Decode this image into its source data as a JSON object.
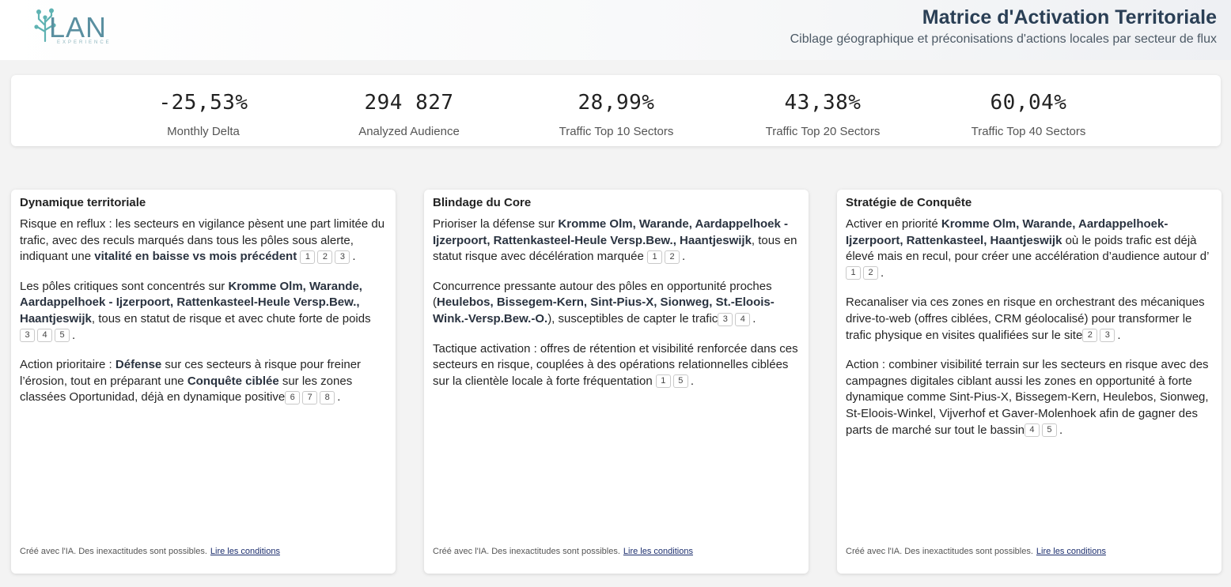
{
  "header": {
    "logo_text": "LAN",
    "logo_sub": "EXPERIENCE",
    "title": "Matrice d'Activation Territoriale",
    "subtitle": "Ciblage géographique et préconisations d'actions locales par secteur de flux"
  },
  "kpis": [
    {
      "value": "-25,53%",
      "label": "Monthly Delta"
    },
    {
      "value": "294 827",
      "label": "Analyzed Audience"
    },
    {
      "value": "28,99%",
      "label": "Traffic Top 10 Sectors"
    },
    {
      "value": "43,38%",
      "label": "Traffic Top 20 Sectors"
    },
    {
      "value": "60,04%",
      "label": "Traffic Top 40 Sectors"
    }
  ],
  "cards": [
    {
      "title": "Dynamique territoriale",
      "paragraphs": [
        {
          "segments": [
            {
              "t": "Risque en reflux : les secteurs en vigilance pèsent une part limitée du trafic, avec des reculs marqués dans tous les pôles sous alerte, indiquant une "
            },
            {
              "t": "vitalité en baisse vs mois précédent",
              "b": true
            },
            {
              "t": " "
            }
          ],
          "refs": [
            "1",
            "2",
            "3"
          ],
          "end": "."
        },
        {
          "segments": [
            {
              "t": "Les pôles critiques sont concentrés sur "
            },
            {
              "t": "Kromme Olm, Warande, Aardappelhoek - Ijzerpoort, Rattenkasteel-Heule Versp.Bew., Haantjeswijk",
              "b": true
            },
            {
              "t": ", tous en statut de risque et avec chute forte de poids"
            }
          ],
          "refs": [
            "3",
            "4",
            "5"
          ],
          "end": "."
        },
        {
          "segments": [
            {
              "t": "Action prioritaire : "
            },
            {
              "t": "Défense",
              "b": true
            },
            {
              "t": " sur ces secteurs à risque pour freiner l’érosion, tout en préparant une "
            },
            {
              "t": "Conquête ciblée",
              "b": true
            },
            {
              "t": " sur les zones classées Oportunidad, déjà en dynamique positive"
            }
          ],
          "refs": [
            "6",
            "7",
            "8"
          ],
          "end": "."
        }
      ],
      "footer_text": "Créé avec l'IA. Des inexactitudes sont possibles.",
      "footer_link": "Lire les conditions"
    },
    {
      "title": "Blindage du Core",
      "paragraphs": [
        {
          "segments": [
            {
              "t": "Prioriser la défense sur "
            },
            {
              "t": "Kromme Olm, Warande, Aardappelhoek - Ijzerpoort, Rattenkasteel-Heule Versp.Bew., Haantjeswijk",
              "b": true
            },
            {
              "t": ", tous en statut risque avec décélération marquée "
            }
          ],
          "refs": [
            "1",
            "2"
          ],
          "end": "."
        },
        {
          "segments": [
            {
              "t": "Concurrence pressante autour des pôles en opportunité proches ("
            },
            {
              "t": "Heulebos, Bissegem-Kern, Sint-Pius-X, Sionweg, St.-Eloois-Wink.-Versp.Bew.-O.",
              "b": true
            },
            {
              "t": "), susceptibles de capter le trafic"
            }
          ],
          "refs": [
            "3",
            "4"
          ],
          "end": "."
        },
        {
          "segments": [
            {
              "t": "Tactique activation : offres de rétention et visibilité renforcée dans ces secteurs en risque, couplées à des opérations relationnelles ciblées sur la clientèle locale à forte fréquentation "
            }
          ],
          "refs": [
            "1",
            "5"
          ],
          "end": "."
        }
      ],
      "footer_text": "Créé avec l'IA. Des inexactitudes sont possibles.",
      "footer_link": "Lire les conditions"
    },
    {
      "title": "Stratégie de Conquête",
      "paragraphs": [
        {
          "segments": [
            {
              "t": "Activer en priorité "
            },
            {
              "t": "Kromme Olm, Warande, Aardappelhoek-Ijzerpoort, Rattenkasteel, Haantjeswijk",
              "b": true
            },
            {
              "t": " où le poids trafic est déjà élevé mais en recul, pour créer une accélération d’audience autour d’"
            }
          ],
          "refs": [
            "1",
            "2"
          ],
          "end": "."
        },
        {
          "segments": [
            {
              "t": "Recanaliser via ces zones en risque en orchestrant des mécaniques drive-to-web (offres ciblées, CRM géolocalisé) pour transformer le trafic physique en visites qualifiées sur le site"
            }
          ],
          "refs": [
            "2",
            "3"
          ],
          "end": "."
        },
        {
          "segments": [
            {
              "t": "Action : combiner visibilité terrain sur les secteurs en risque avec des campagnes digitales ciblant aussi les zones en opportunité à forte dynamique comme Sint-Pius-X, Bissegem-Kern, Heulebos, Sionweg, St-Eloois-Winkel, Vijverhof et Gaver-Molenhoek afin de gagner des parts de marché sur tout le bassin"
            }
          ],
          "refs": [
            "4",
            "5"
          ],
          "end": "."
        }
      ],
      "footer_text": "Créé avec l'IA. Des inexactitudes sont possibles.",
      "footer_link": "Lire les conditions"
    }
  ]
}
